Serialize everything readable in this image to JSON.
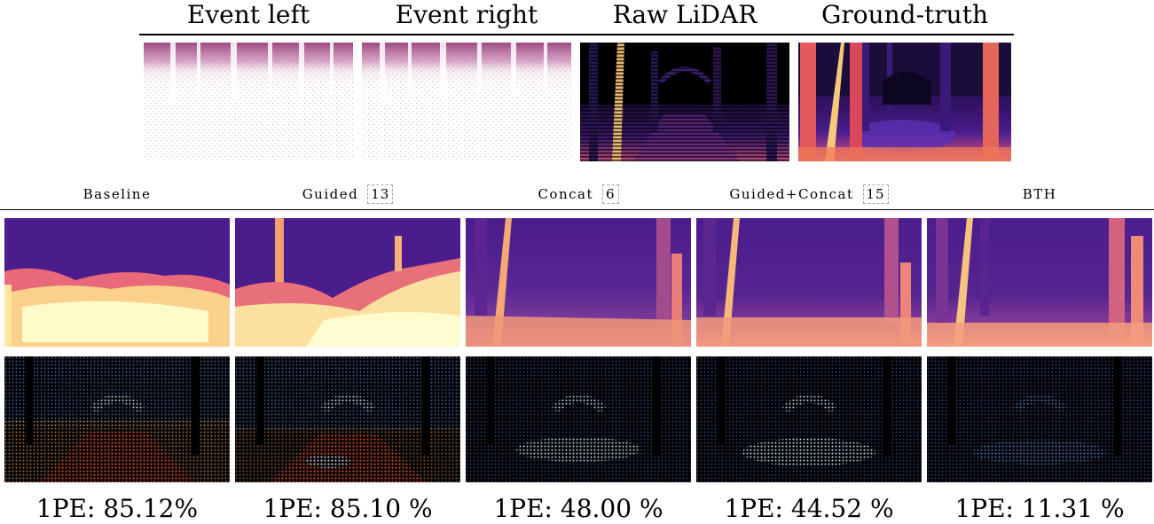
{
  "top_titles": [
    "Event left",
    "Event right",
    "Raw LiDAR",
    "Ground-truth"
  ],
  "methods": [
    {
      "label": "Baseline",
      "ref": "",
      "metric": "1PE: 85.12%"
    },
    {
      "label": "Guided",
      "ref": "13",
      "metric": "1PE: 85.10 %"
    },
    {
      "label": "Concat",
      "ref": "6",
      "metric": "1PE: 48.00 %"
    },
    {
      "label": "Guided+Concat",
      "ref": "15",
      "metric": "1PE: 44.52 %"
    },
    {
      "label": "BTH",
      "ref": "",
      "metric": "1PE: 11.31 %"
    }
  ]
}
